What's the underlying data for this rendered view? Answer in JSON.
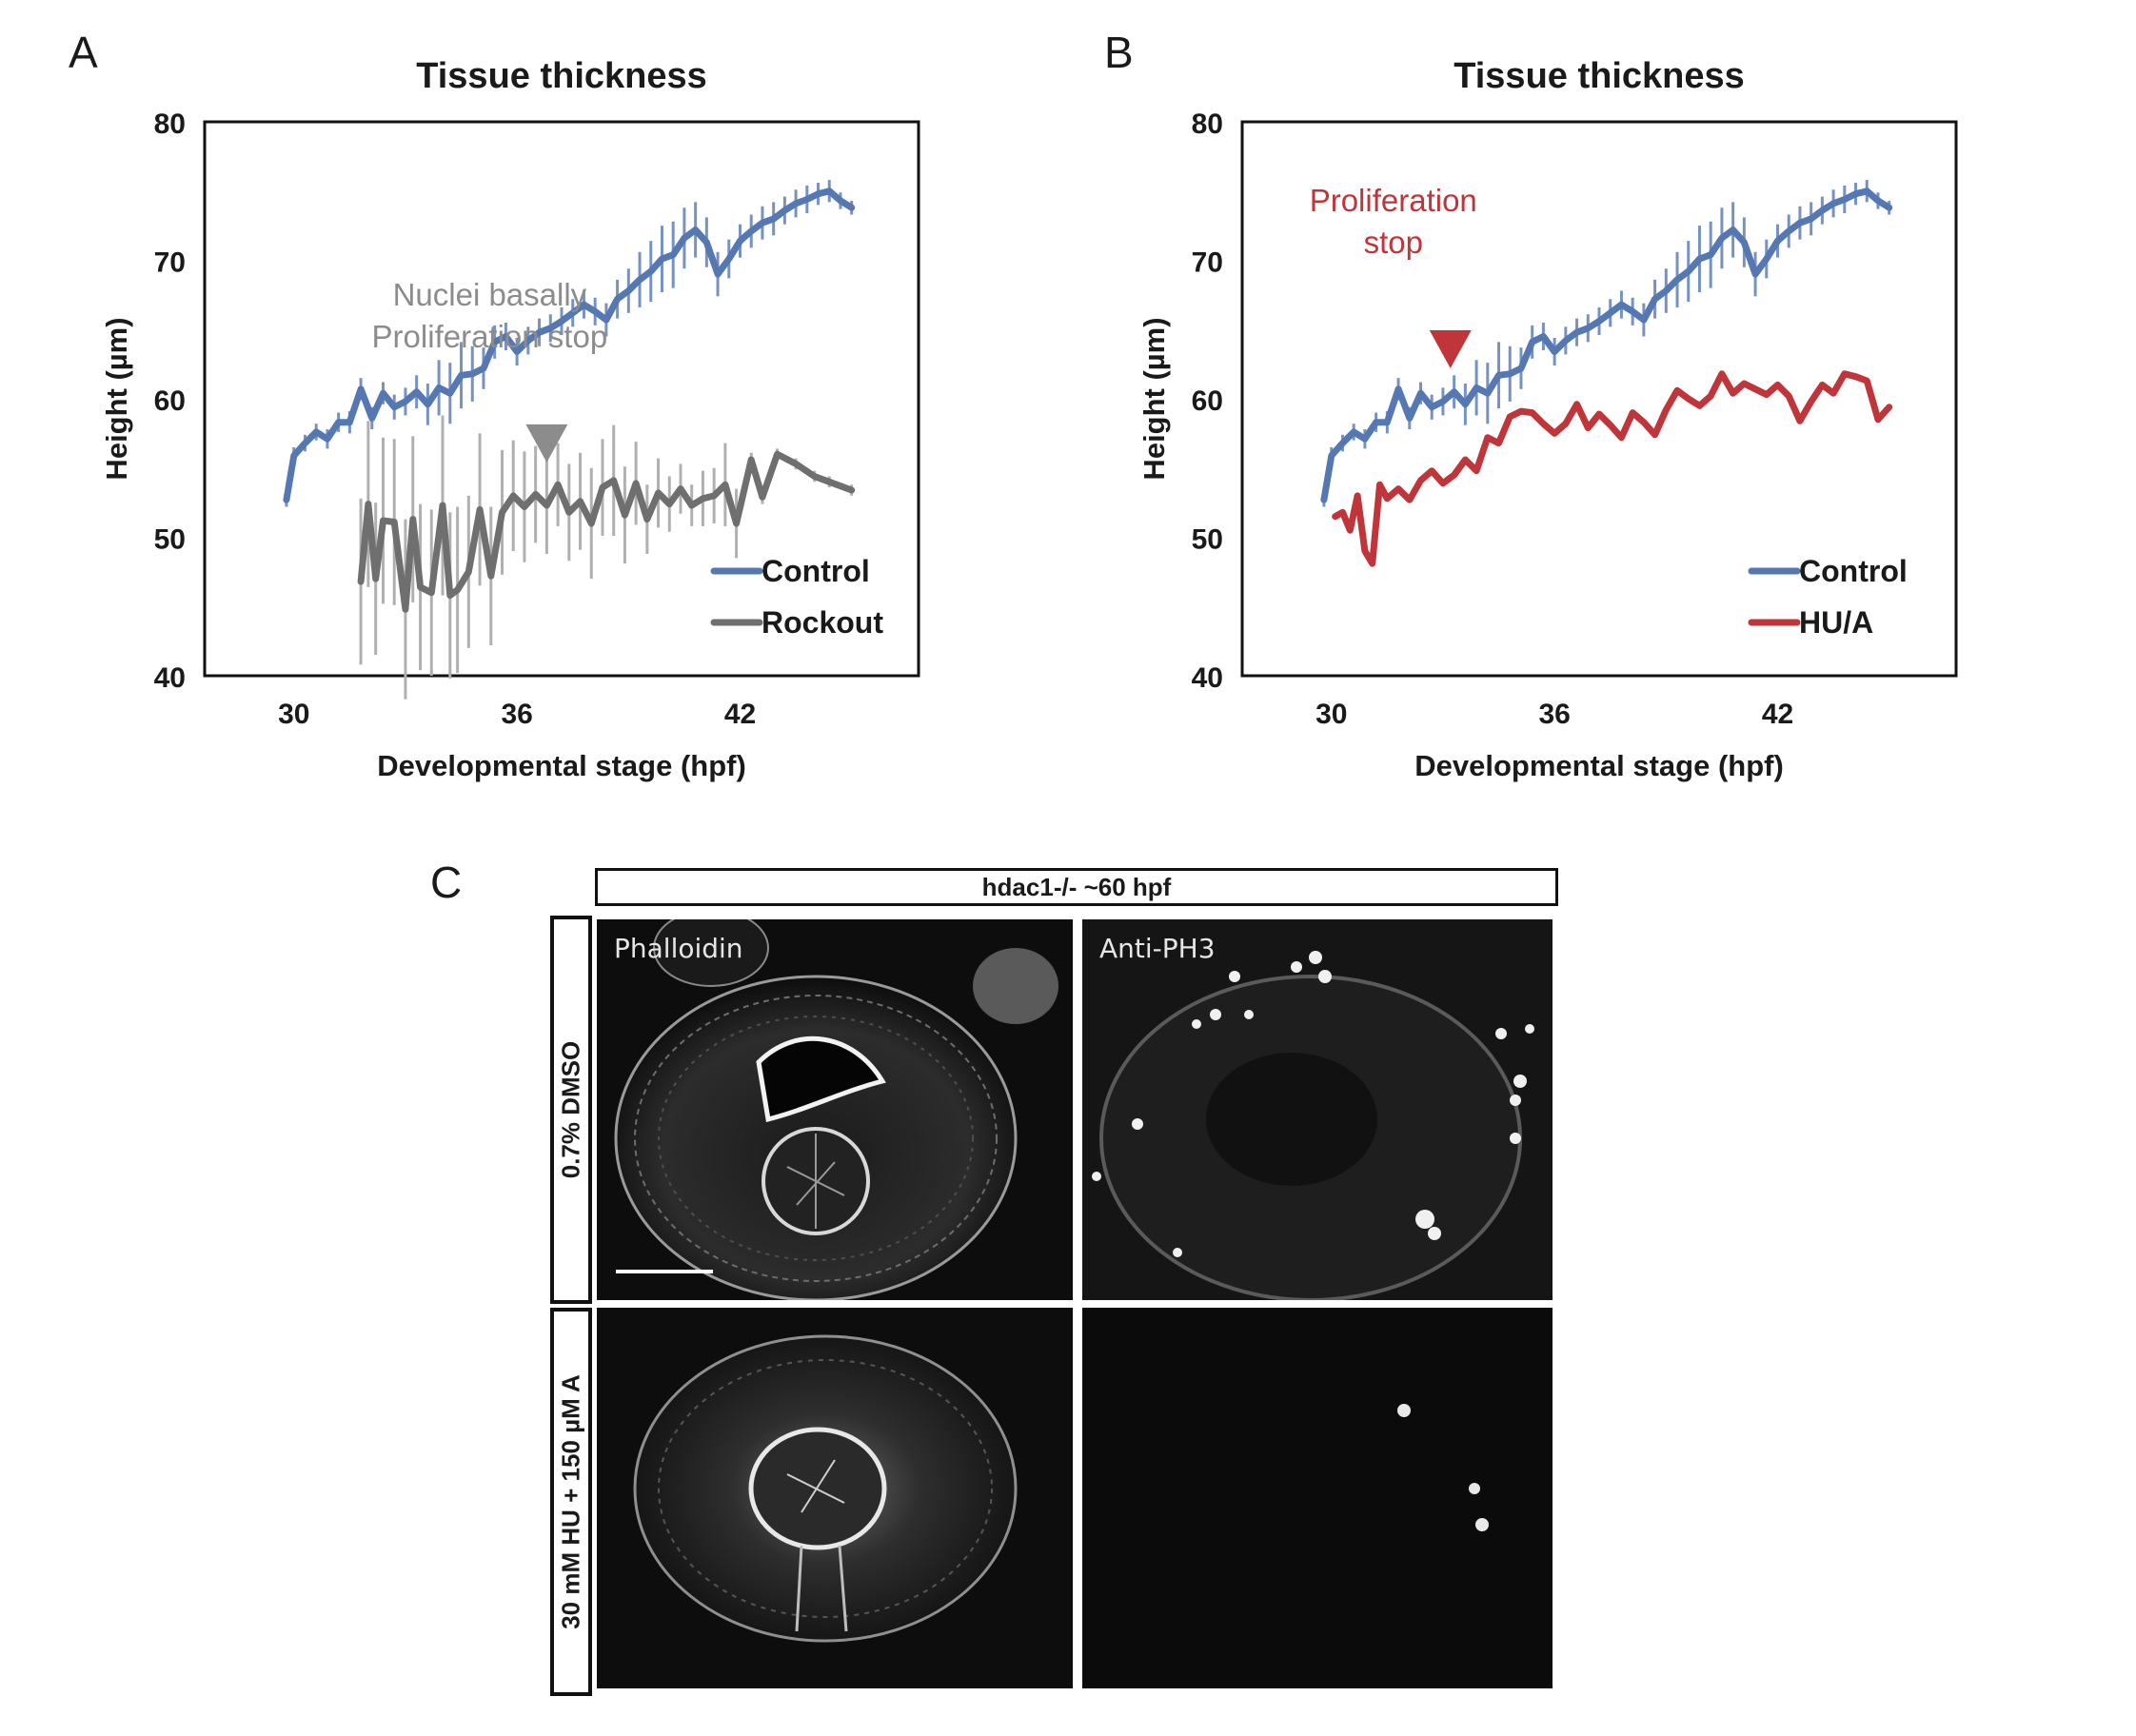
{
  "panels": {
    "a_letter": "A",
    "b_letter": "B",
    "c_letter": "C"
  },
  "chart_data": [
    {
      "type": "line",
      "title": "Tissue thickness",
      "xlabel": "Developmental stage (hpf)",
      "ylabel": "Height (µm)",
      "xticks": [
        30,
        36,
        42
      ],
      "yticks": [
        40,
        50,
        60,
        70,
        80
      ],
      "xlim": [
        27.6,
        46.8
      ],
      "ylim": [
        40,
        80
      ],
      "legend_position": "bottom-right",
      "annotation": {
        "lines": [
          "Nuclei basally",
          "Proliferation stop"
        ],
        "color": "#8c8c8c",
        "arrow_x": 36.8,
        "arrow_y": 55.4
      },
      "series": [
        {
          "name": "Control",
          "color": "#5578b3",
          "x": [
            29.8,
            30.0,
            30.3,
            30.6,
            30.9,
            31.2,
            31.5,
            31.8,
            32.1,
            32.4,
            32.7,
            33.0,
            33.3,
            33.6,
            33.9,
            34.2,
            34.5,
            34.8,
            35.1,
            35.4,
            35.7,
            36.0,
            36.3,
            36.6,
            36.9,
            37.2,
            37.5,
            37.8,
            38.1,
            38.4,
            38.7,
            39.0,
            39.3,
            39.6,
            39.9,
            40.2,
            40.5,
            40.8,
            41.1,
            41.4,
            41.7,
            42.0,
            42.3,
            42.6,
            42.9,
            43.2,
            43.5,
            43.8,
            44.1,
            44.4,
            44.7,
            45.0
          ],
          "y": [
            52.7,
            55.9,
            56.8,
            57.6,
            57.1,
            58.3,
            58.3,
            60.7,
            58.6,
            60.4,
            59.4,
            59.8,
            60.5,
            59.6,
            60.8,
            60.4,
            61.7,
            61.8,
            62.2,
            64.1,
            64.5,
            63.4,
            64.2,
            64.8,
            65.1,
            65.6,
            66.2,
            66.8,
            66.3,
            65.7,
            67.2,
            67.8,
            68.6,
            69.2,
            70.1,
            70.4,
            71.6,
            72.2,
            71.3,
            69.0,
            70.1,
            71.4,
            72.1,
            72.7,
            73.0,
            73.6,
            74.1,
            74.4,
            74.8,
            75.0,
            74.3,
            73.8
          ],
          "error": [
            0.5,
            0.6,
            0.6,
            0.6,
            0.7,
            0.7,
            0.8,
            0.8,
            0.8,
            0.8,
            0.9,
            1.0,
            1.2,
            1.5,
            2.0,
            2.2,
            2.4,
            2.0,
            1.5,
            1.2,
            1.0,
            1.0,
            1.0,
            1.0,
            1.0,
            1.0,
            1.0,
            1.0,
            1.0,
            1.2,
            1.4,
            1.6,
            2.0,
            2.2,
            2.4,
            2.4,
            2.2,
            2.0,
            1.8,
            1.6,
            1.4,
            1.2,
            1.2,
            1.2,
            1.2,
            1.0,
            1.0,
            1.0,
            0.8,
            0.8,
            0.6,
            0.5
          ]
        },
        {
          "name": "Rockout",
          "color": "#6f6f6f",
          "errcolor": "#b0b0b0",
          "x": [
            31.8,
            32.0,
            32.2,
            32.4,
            32.7,
            33.0,
            33.2,
            33.4,
            33.7,
            34.0,
            34.2,
            34.4,
            34.7,
            35.0,
            35.3,
            35.6,
            35.9,
            36.2,
            36.5,
            36.8,
            37.1,
            37.4,
            37.7,
            38.0,
            38.3,
            38.6,
            38.9,
            39.2,
            39.5,
            39.8,
            40.1,
            40.4,
            40.7,
            41.0,
            41.3,
            41.6,
            41.9,
            42.3,
            42.6,
            43.0,
            43.5,
            44.0,
            44.4,
            45.0
          ],
          "y": [
            46.8,
            52.4,
            47.0,
            51.2,
            51.1,
            44.8,
            51.3,
            46.4,
            46.0,
            52.3,
            45.8,
            46.2,
            47.5,
            52.0,
            47.2,
            51.8,
            53.0,
            52.2,
            53.1,
            52.3,
            53.8,
            51.8,
            52.6,
            51.0,
            53.6,
            54.1,
            51.6,
            53.9,
            51.3,
            53.2,
            52.4,
            53.5,
            52.3,
            52.8,
            53.0,
            53.8,
            51.0,
            55.6,
            52.9,
            56.0,
            55.3,
            54.4,
            54.0,
            53.4
          ],
          "error": [
            6.0,
            6.0,
            5.5,
            6.0,
            6.0,
            6.5,
            6.0,
            6.0,
            6.0,
            6.5,
            6.0,
            6.0,
            5.5,
            5.5,
            5.0,
            4.5,
            4.0,
            4.0,
            3.5,
            3.5,
            3.0,
            3.5,
            3.5,
            4.0,
            3.5,
            4.0,
            3.5,
            3.0,
            2.5,
            2.5,
            2.0,
            1.8,
            1.5,
            2.0,
            2.0,
            3.0,
            2.5,
            0.5,
            0.5,
            0.4,
            0.4,
            0.4,
            0.4,
            0.4
          ]
        }
      ]
    },
    {
      "type": "line",
      "title": "Tissue thickness",
      "xlabel": "Developmental stage (hpf)",
      "ylabel": "Height (µm)",
      "xticks": [
        30,
        36,
        42
      ],
      "yticks": [
        40,
        50,
        60,
        70,
        80
      ],
      "xlim": [
        27.6,
        46.8
      ],
      "ylim": [
        40,
        80
      ],
      "legend_position": "bottom-right",
      "annotation": {
        "lines": [
          "Proliferation",
          "stop"
        ],
        "color": "#c0353a",
        "arrow_x": 33.2,
        "arrow_y": 62.2
      },
      "series": [
        {
          "name": "Control",
          "color": "#5578b3",
          "x": [
            29.8,
            30.0,
            30.3,
            30.6,
            30.9,
            31.2,
            31.5,
            31.8,
            32.1,
            32.4,
            32.7,
            33.0,
            33.3,
            33.6,
            33.9,
            34.2,
            34.5,
            34.8,
            35.1,
            35.4,
            35.7,
            36.0,
            36.3,
            36.6,
            36.9,
            37.2,
            37.5,
            37.8,
            38.1,
            38.4,
            38.7,
            39.0,
            39.3,
            39.6,
            39.9,
            40.2,
            40.5,
            40.8,
            41.1,
            41.4,
            41.7,
            42.0,
            42.3,
            42.6,
            42.9,
            43.2,
            43.5,
            43.8,
            44.1,
            44.4,
            44.7,
            45.0
          ],
          "y": [
            52.7,
            55.9,
            56.8,
            57.6,
            57.1,
            58.3,
            58.3,
            60.7,
            58.6,
            60.4,
            59.4,
            59.8,
            60.5,
            59.6,
            60.8,
            60.4,
            61.7,
            61.8,
            62.2,
            64.1,
            64.5,
            63.4,
            64.2,
            64.8,
            65.1,
            65.6,
            66.2,
            66.8,
            66.3,
            65.7,
            67.2,
            67.8,
            68.6,
            69.2,
            70.1,
            70.4,
            71.6,
            72.2,
            71.3,
            69.0,
            70.1,
            71.4,
            72.1,
            72.7,
            73.0,
            73.6,
            74.1,
            74.4,
            74.8,
            75.0,
            74.3,
            73.8
          ],
          "error": [
            0.5,
            0.6,
            0.6,
            0.6,
            0.7,
            0.7,
            0.8,
            0.8,
            0.8,
            0.8,
            0.9,
            1.0,
            1.2,
            1.5,
            2.0,
            2.2,
            2.4,
            2.0,
            1.5,
            1.2,
            1.0,
            1.0,
            1.0,
            1.0,
            1.0,
            1.0,
            1.0,
            1.0,
            1.0,
            1.2,
            1.4,
            1.6,
            2.0,
            2.2,
            2.4,
            2.4,
            2.2,
            2.0,
            1.8,
            1.6,
            1.4,
            1.2,
            1.2,
            1.2,
            1.2,
            1.0,
            1.0,
            1.0,
            0.8,
            0.8,
            0.6,
            0.5
          ]
        },
        {
          "name": "HU/A",
          "color": "#c0353a",
          "x": [
            30.1,
            30.3,
            30.5,
            30.7,
            30.9,
            31.1,
            31.3,
            31.5,
            31.8,
            32.1,
            32.4,
            32.7,
            33.0,
            33.3,
            33.6,
            33.9,
            34.2,
            34.5,
            34.8,
            35.1,
            35.4,
            35.7,
            36.0,
            36.3,
            36.6,
            36.9,
            37.2,
            37.5,
            37.8,
            38.1,
            38.4,
            38.7,
            39.0,
            39.3,
            39.6,
            39.9,
            40.2,
            40.5,
            40.8,
            41.1,
            41.4,
            41.7,
            42.0,
            42.3,
            42.6,
            42.9,
            43.2,
            43.5,
            43.8,
            44.1,
            44.4,
            44.7,
            45.0
          ],
          "y": [
            51.5,
            51.8,
            50.5,
            53.0,
            49.0,
            48.1,
            53.8,
            52.8,
            53.5,
            52.7,
            54.1,
            54.8,
            53.9,
            54.5,
            55.6,
            54.8,
            57.2,
            56.8,
            58.7,
            59.1,
            59.0,
            58.2,
            57.5,
            58.2,
            59.6,
            57.9,
            58.9,
            58.1,
            57.2,
            59.0,
            58.3,
            57.4,
            59.2,
            60.6,
            60.0,
            59.5,
            60.2,
            61.8,
            60.4,
            61.1,
            60.7,
            60.3,
            61.0,
            60.2,
            58.4,
            59.8,
            61.0,
            60.4,
            61.8,
            61.6,
            61.3,
            58.5,
            59.4
          ],
          "error": []
        }
      ]
    }
  ],
  "figure_c": {
    "header": "hdac1-/- ~60 hpf",
    "rows": [
      "0.7% DMSO",
      "30 mM HU + 150 µM A"
    ],
    "columns": [
      "Phalloidin",
      "Anti-PH3"
    ]
  }
}
